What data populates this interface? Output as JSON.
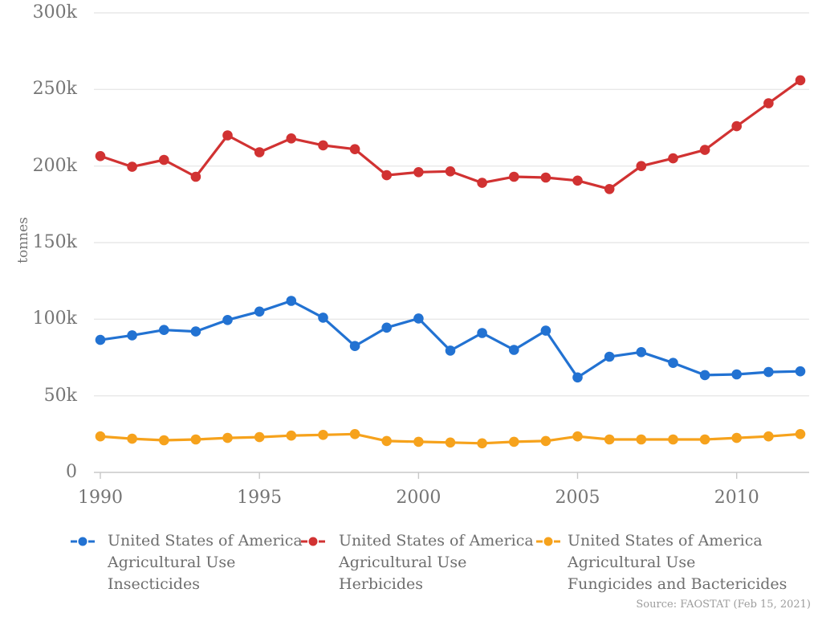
{
  "chart_data": {
    "type": "line",
    "title": "",
    "xlabel": "",
    "ylabel": "tonnes",
    "ylim": [
      0,
      300000
    ],
    "grid": true,
    "legend_position": "bottom",
    "x": [
      1990,
      1991,
      1992,
      1993,
      1994,
      1995,
      1996,
      1997,
      1998,
      1999,
      2000,
      2001,
      2002,
      2003,
      2004,
      2005,
      2006,
      2007,
      2008,
      2009,
      2010,
      2011,
      2012
    ],
    "x_ticks": [
      1990,
      1995,
      2000,
      2005,
      2010
    ],
    "y_ticks": [
      {
        "label": "0",
        "value": 0
      },
      {
        "label": "50k",
        "value": 50000
      },
      {
        "label": "100k",
        "value": 100000
      },
      {
        "label": "150k",
        "value": 150000
      },
      {
        "label": "200k",
        "value": 200000
      },
      {
        "label": "250k",
        "value": 250000
      },
      {
        "label": "300k",
        "value": 300000
      }
    ],
    "series": [
      {
        "name": "United States of America Agricultural Use Insecticides",
        "legend_lines": [
          "United States of America",
          "Agricultural Use",
          "Insecticides"
        ],
        "color": "#2272d2",
        "values": [
          86500,
          89500,
          93000,
          92000,
          99500,
          105000,
          112000,
          101000,
          82500,
          94500,
          100500,
          79500,
          91000,
          80000,
          92500,
          62000,
          75500,
          78500,
          71500,
          63500,
          64000,
          65500,
          66000
        ]
      },
      {
        "name": "United States of America Agricultural Use Herbicides",
        "legend_lines": [
          "United States of America",
          "Agricultural Use",
          "Herbicides"
        ],
        "color": "#d13232",
        "values": [
          206500,
          199500,
          204000,
          193000,
          220000,
          209000,
          218000,
          213500,
          211000,
          194000,
          196000,
          196500,
          189000,
          193000,
          192500,
          190500,
          185000,
          200000,
          205000,
          210500,
          226000,
          241000,
          256000
        ]
      },
      {
        "name": "United States of America Agricultural Use Fungicides and Bactericides",
        "legend_lines": [
          "United States of America",
          "Agricultural Use",
          "Fungicides and Bactericides"
        ],
        "color": "#f6a21c",
        "values": [
          23500,
          22000,
          21000,
          21500,
          22500,
          23000,
          24000,
          24500,
          25000,
          20500,
          20000,
          19500,
          19000,
          20000,
          20500,
          23500,
          21500,
          21500,
          21500,
          21500,
          22500,
          23500,
          25000
        ]
      }
    ],
    "source": "Source: FAOSTAT (Feb 15, 2021)"
  },
  "colors": {
    "background": "#ffffff",
    "grid": "#e8e8e8",
    "axis": "#c8c8c8",
    "axis_text": "#757575",
    "legend_text": "#6e6e6e",
    "source_text": "#9c9c9c"
  }
}
